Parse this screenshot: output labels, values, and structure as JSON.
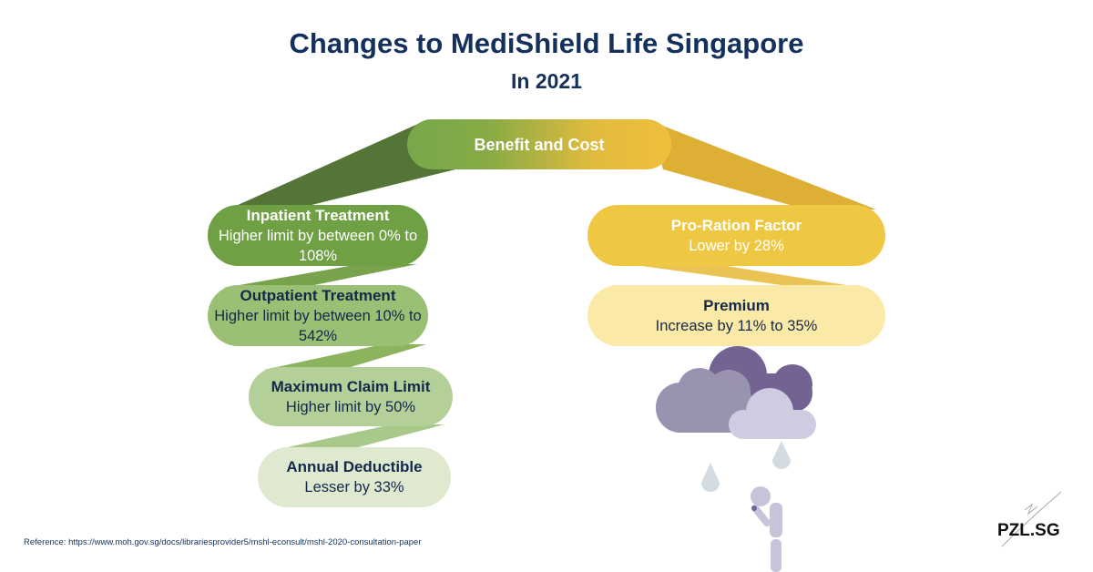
{
  "title": "Changes to MediShield Life Singapore",
  "subtitle": "In 2021",
  "root_node": "Benefit and Cost",
  "benefits": [
    {
      "heading": "Inpatient Treatment",
      "detail": "Higher limit by between 0% to 108%"
    },
    {
      "heading": "Outpatient Treatment",
      "detail": "Higher limit by between 10% to 542%"
    },
    {
      "heading": "Maximum Claim Limit",
      "detail": "Higher limit by 50%"
    },
    {
      "heading": "Annual Deductible",
      "detail": "Lesser by 33%"
    }
  ],
  "costs": [
    {
      "heading": "Pro-Ration Factor",
      "detail": "Lower by 28%"
    },
    {
      "heading": "Premium",
      "detail": "Increase by 11% to 35%"
    }
  ],
  "reference": "Reference: https://www.moh.gov.sg/docs/librariesprovider5/mshl-econsult/mshl-2020-consultation-paper",
  "logo": "PZL.SG",
  "colors": {
    "navy": "#13315c",
    "green": "#6fa043",
    "yellow": "#efc843",
    "purple": "#736393"
  }
}
